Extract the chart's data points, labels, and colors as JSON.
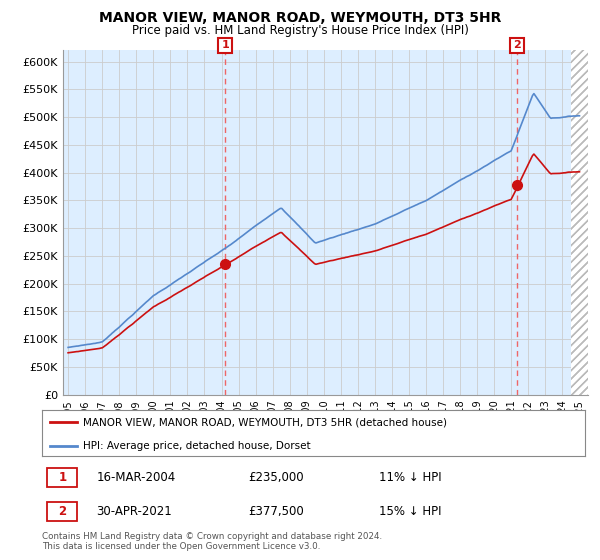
{
  "title": "MANOR VIEW, MANOR ROAD, WEYMOUTH, DT3 5HR",
  "subtitle": "Price paid vs. HM Land Registry's House Price Index (HPI)",
  "ylabel_ticks": [
    "£0",
    "£50K",
    "£100K",
    "£150K",
    "£200K",
    "£250K",
    "£300K",
    "£350K",
    "£400K",
    "£450K",
    "£500K",
    "£550K",
    "£600K"
  ],
  "ytick_vals": [
    0,
    50000,
    100000,
    150000,
    200000,
    250000,
    300000,
    350000,
    400000,
    450000,
    500000,
    550000,
    600000
  ],
  "ylim": [
    0,
    620000
  ],
  "xlim_start": 1994.7,
  "xlim_end": 2025.5,
  "data_end": 2024.5,
  "hpi_color": "#5588cc",
  "hpi_fill_color": "#ddeeff",
  "price_color": "#cc1111",
  "marker1_date": 2004.21,
  "marker1_price": 235000,
  "marker2_date": 2021.33,
  "marker2_price": 377500,
  "vline_color": "#ee6666",
  "legend_line1": "MANOR VIEW, MANOR ROAD, WEYMOUTH, DT3 5HR (detached house)",
  "legend_line2": "HPI: Average price, detached house, Dorset",
  "annotation1_date": "16-MAR-2004",
  "annotation1_price": "£235,000",
  "annotation1_hpi": "11% ↓ HPI",
  "annotation2_date": "30-APR-2021",
  "annotation2_price": "£377,500",
  "annotation2_hpi": "15% ↓ HPI",
  "footer": "Contains HM Land Registry data © Crown copyright and database right 2024.\nThis data is licensed under the Open Government Licence v3.0.",
  "background_color": "#ffffff",
  "grid_color": "#cccccc"
}
